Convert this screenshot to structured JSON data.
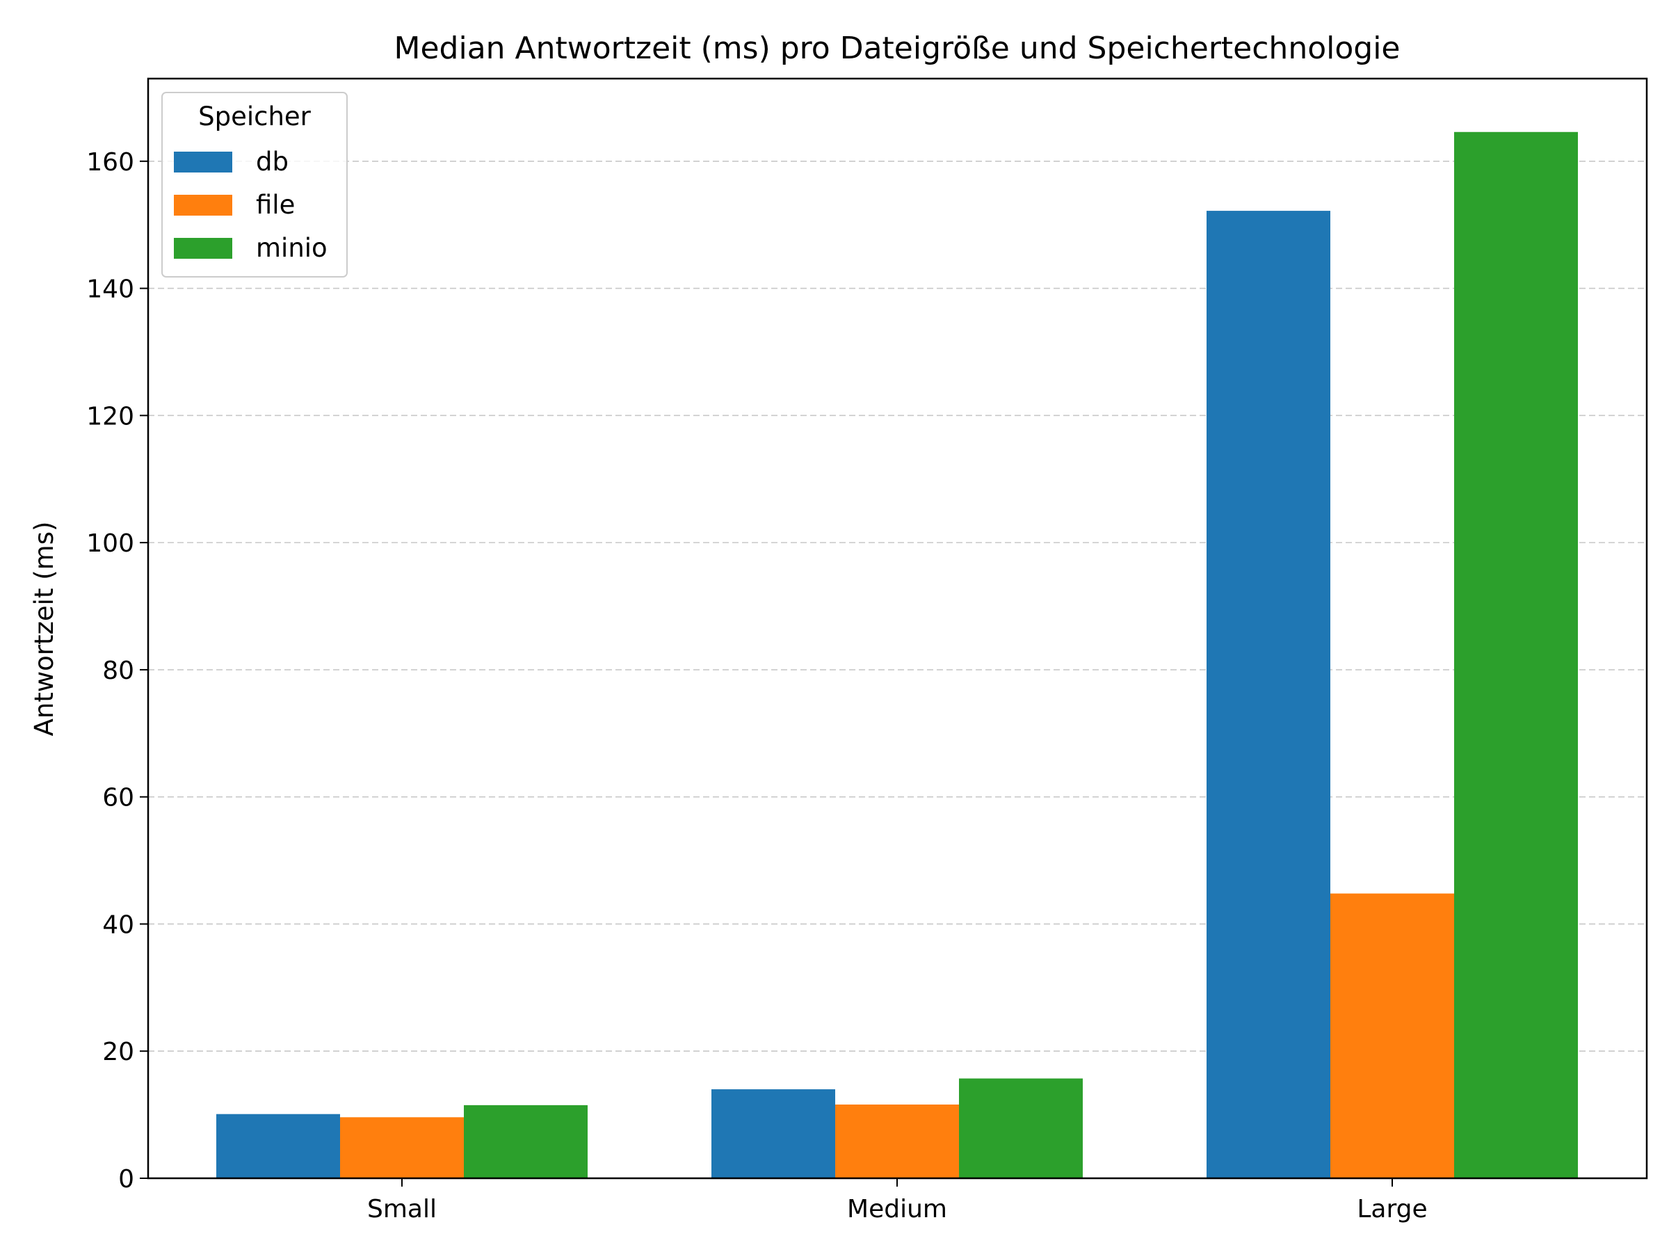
{
  "chart_data": {
    "type": "bar",
    "title": "Median Antwortzeit (ms) pro Dateigröße und Speichertechnologie",
    "xlabel": "",
    "ylabel": "Antwortzeit (ms)",
    "categories": [
      "Small",
      "Medium",
      "Large"
    ],
    "series": [
      {
        "name": "db",
        "color": "#1f77b4",
        "values": [
          10.1,
          14.0,
          152.2
        ]
      },
      {
        "name": "file",
        "color": "#ff7f0e",
        "values": [
          9.6,
          11.6,
          44.8
        ]
      },
      {
        "name": "minio",
        "color": "#2ca02c",
        "values": [
          11.5,
          15.7,
          164.6
        ]
      }
    ],
    "ylim": [
      0,
      173
    ],
    "yticks": [
      0,
      20,
      40,
      60,
      80,
      100,
      120,
      140,
      160
    ],
    "grid": "y-dashed",
    "legend": {
      "title": "Speicher",
      "placement": "top-left"
    }
  }
}
